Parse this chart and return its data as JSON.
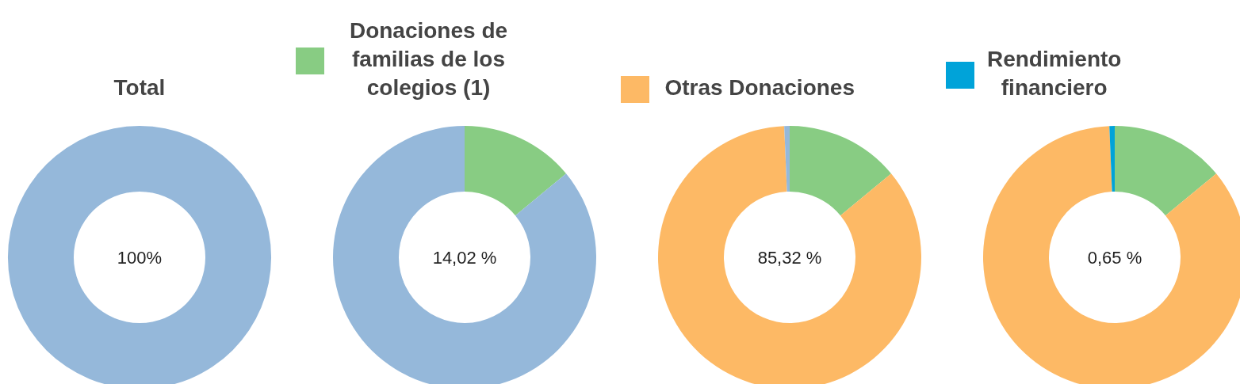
{
  "chart_data": [
    {
      "type": "donut",
      "title": "Total",
      "categories": [
        null
      ],
      "values": [
        100
      ],
      "colors": [
        "#95b8da"
      ],
      "annotations": [
        "100%"
      ]
    },
    {
      "type": "donut",
      "categories": [
        "Donaciones de familias de los colegios (1)",
        null
      ],
      "values": [
        14.02,
        85.98
      ],
      "colors": [
        "#88cc83",
        "#95b8da"
      ],
      "legend": "top",
      "annotations": [
        "14,02 %"
      ]
    },
    {
      "type": "donut",
      "categories": [
        null,
        "Otras Donaciones",
        null
      ],
      "values": [
        14.02,
        85.32,
        0.66
      ],
      "colors": [
        "#88cc83",
        "#fdb965",
        "#95b8da"
      ],
      "legend": "top",
      "annotations": [
        "85,32 %"
      ]
    },
    {
      "type": "donut",
      "categories": [
        null,
        null,
        "Rendimiento financiero"
      ],
      "values": [
        14.02,
        85.32,
        0.65
      ],
      "colors": [
        "#88cc83",
        "#fdb965",
        "#00a3d9"
      ],
      "legend": "top",
      "annotations": [
        "0,65 %"
      ]
    }
  ]
}
